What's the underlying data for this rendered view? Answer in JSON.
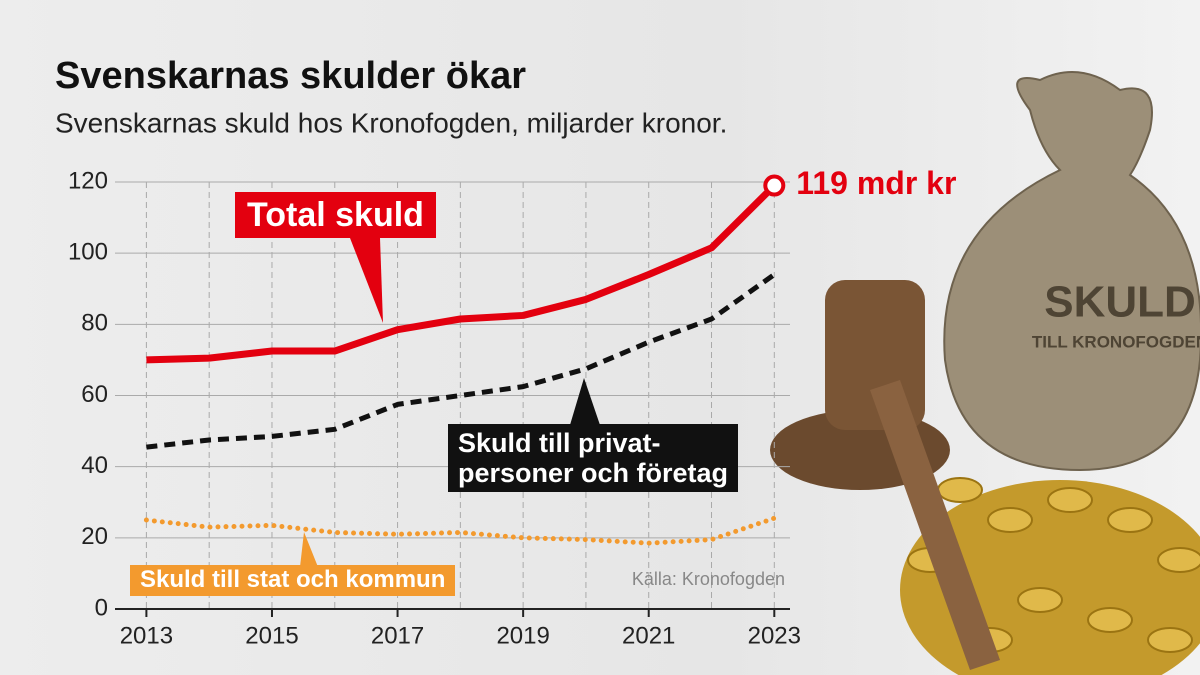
{
  "chart_data": {
    "type": "line",
    "title": "Svenskarnas skulder ökar",
    "subtitle": "Svenskarnas skuld hos Kronofogden, miljarder kronor.",
    "source": "Källa: Kronofogden",
    "x": [
      2013,
      2014,
      2015,
      2016,
      2017,
      2018,
      2019,
      2020,
      2021,
      2022,
      2023
    ],
    "series": [
      {
        "name": "Total skuld",
        "color": "#e3000f",
        "style": "solid",
        "values": [
          70,
          70.5,
          72.5,
          72.5,
          78.5,
          81.5,
          82.5,
          87,
          94,
          101.5,
          119
        ],
        "value_labels": [
          null,
          null,
          null,
          null,
          null,
          null,
          null,
          null,
          null,
          null,
          "119 mdr kr"
        ]
      },
      {
        "name": "Skuld till privat-\npersoner och företag",
        "color": "#111111",
        "style": "dashed",
        "values": [
          45.5,
          47.5,
          48.5,
          50.5,
          57.5,
          60,
          62.5,
          67.5,
          75,
          81.5,
          94
        ]
      },
      {
        "name": "Skuld till stat och kommun",
        "color": "#f39a2e",
        "style": "dotted",
        "values": [
          25,
          23,
          23.5,
          21.5,
          21,
          21.5,
          20,
          19.5,
          18.5,
          19.5,
          25.5
        ]
      }
    ],
    "xlim": [
      2012.5,
      2023.25
    ],
    "xticks": [
      2013,
      2015,
      2017,
      2019,
      2021,
      2023
    ],
    "ylim": [
      0,
      120
    ],
    "yticks": [
      0,
      20,
      40,
      60,
      80,
      100,
      120
    ],
    "grid": true
  },
  "illustration": {
    "sack_text": [
      "SKULD",
      "TILL KRONOFOGDEN"
    ]
  }
}
